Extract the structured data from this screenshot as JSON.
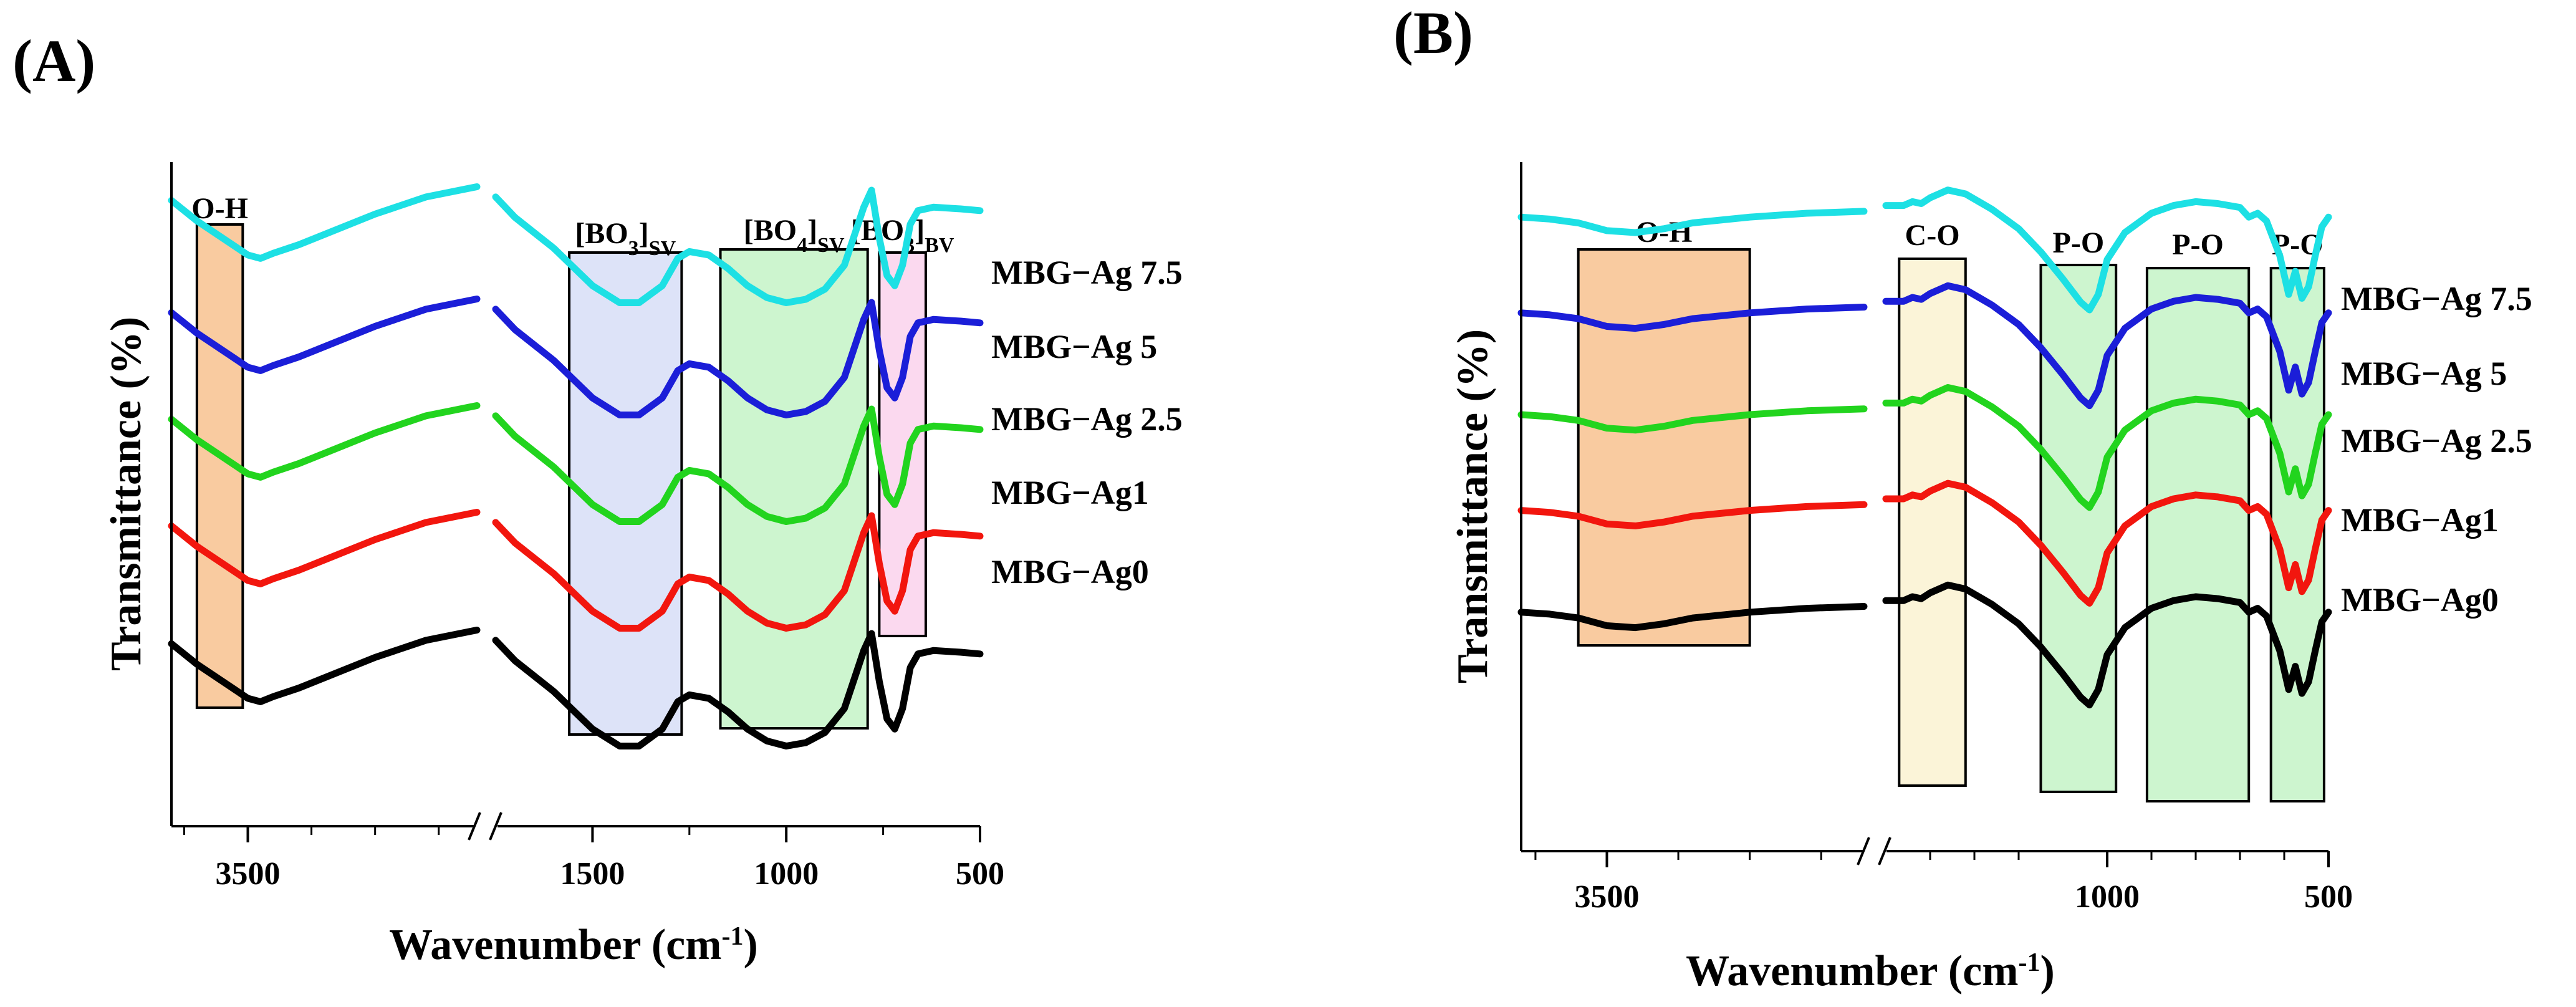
{
  "chart_data": [
    {
      "panel": "(A)",
      "type": "line",
      "xlabel": "Wavenumber (cm-1)",
      "ylabel": "Transmittance (%)",
      "x_reversed": true,
      "axis_break": "//",
      "x_segments": [
        {
          "range": [
            3800,
            2600
          ],
          "ticks": [
            3500
          ],
          "minor_ticks": [
            3750,
            3250,
            3000,
            2750
          ]
        },
        {
          "range": [
            1750,
            500
          ],
          "ticks": [
            1500,
            1000,
            500
          ],
          "minor_ticks": [
            1250,
            750
          ]
        }
      ],
      "tick_labels": [
        "3500",
        "1500",
        "1000",
        "500"
      ],
      "y_ticks_shown": false,
      "regions": [
        {
          "label": "O-H",
          "label_main": "O-H",
          "label_sub": "",
          "from": 3700,
          "to": 3520,
          "color": "#f9cba0"
        },
        {
          "label": "[BO3]SV",
          "label_main": "[BO",
          "label_num": "3",
          "label_sub": "SV",
          "from": 1560,
          "to": 1270,
          "color": "#dde3f8"
        },
        {
          "label": "[BO4]SV",
          "label_main": "[BO",
          "label_num": "4",
          "label_sub": "SV",
          "from": 1170,
          "to": 790,
          "color": "#cdf5cf"
        },
        {
          "label": "[BO3]BV",
          "label_main": "[BO",
          "label_num": "3",
          "label_sub": "BV",
          "from": 760,
          "to": 640,
          "color": "#fbd9ef"
        }
      ],
      "series": [
        {
          "name": "MBG−Ag 7.5",
          "color": "#1de0e4"
        },
        {
          "name": "MBG−Ag 5",
          "color": "#1b1ed8"
        },
        {
          "name": "MBG−Ag 2.5",
          "color": "#22d41e"
        },
        {
          "name": "MBG−Ag1",
          "color": "#f2160e"
        },
        {
          "name": "MBG−Ag0",
          "color": "#000000"
        }
      ],
      "curves_note": "Spectra are stacked with vertical offsets; transmittance values are relative (no y scale printed).",
      "offsets": [
        0.91,
        0.71,
        0.52,
        0.33,
        0.12
      ],
      "points": {
        "high": [
          [
            3800,
            0.62
          ],
          [
            3700,
            0.5
          ],
          [
            3600,
            0.4
          ],
          [
            3500,
            0.3
          ],
          [
            3450,
            0.28
          ],
          [
            3400,
            0.31
          ],
          [
            3300,
            0.36
          ],
          [
            3200,
            0.42
          ],
          [
            3000,
            0.54
          ],
          [
            2800,
            0.64
          ],
          [
            2600,
            0.7
          ]
        ],
        "low": [
          [
            1750,
            0.64
          ],
          [
            1700,
            0.52
          ],
          [
            1600,
            0.34
          ],
          [
            1500,
            0.12
          ],
          [
            1430,
            0.02
          ],
          [
            1380,
            0.02
          ],
          [
            1320,
            0.12
          ],
          [
            1280,
            0.28
          ],
          [
            1250,
            0.32
          ],
          [
            1200,
            0.3
          ],
          [
            1150,
            0.22
          ],
          [
            1100,
            0.12
          ],
          [
            1050,
            0.05
          ],
          [
            1000,
            0.02
          ],
          [
            950,
            0.04
          ],
          [
            900,
            0.1
          ],
          [
            850,
            0.24
          ],
          [
            800,
            0.58
          ],
          [
            780,
            0.68
          ],
          [
            760,
            0.4
          ],
          [
            740,
            0.18
          ],
          [
            720,
            0.12
          ],
          [
            700,
            0.24
          ],
          [
            680,
            0.48
          ],
          [
            660,
            0.56
          ],
          [
            620,
            0.58
          ],
          [
            550,
            0.57
          ],
          [
            500,
            0.56
          ]
        ]
      }
    },
    {
      "panel": "(B)",
      "type": "line",
      "xlabel": "Wavenumber (cm-1)",
      "ylabel": "Transmittance (%)",
      "x_reversed": true,
      "axis_break": "//",
      "x_segments": [
        {
          "range": [
            3800,
            2600
          ],
          "ticks": [
            3500
          ],
          "minor_ticks": [
            3750,
            3250,
            3000,
            2750
          ]
        },
        {
          "range": [
            1500,
            500
          ],
          "ticks": [
            1000,
            500
          ],
          "minor_ticks": [
            1400,
            1300,
            1200,
            900,
            800,
            700,
            600
          ]
        }
      ],
      "tick_labels": [
        "3500",
        "1000",
        "500"
      ],
      "y_ticks_shown": false,
      "regions": [
        {
          "label": "O-H",
          "label_main": "O-H",
          "from": 3600,
          "to": 3000,
          "color": "#f9cba0"
        },
        {
          "label": "C-O",
          "label_main": "C-O",
          "from": 1470,
          "to": 1320,
          "color": "#fbf4d8"
        },
        {
          "label": "P-O",
          "label_main": "P-O",
          "from": 1150,
          "to": 980,
          "color": "#cdf5cf"
        },
        {
          "label": "P-O",
          "label_main": "P-O",
          "from": 910,
          "to": 680,
          "color": "#cdf5cf"
        },
        {
          "label": "P-O",
          "label_main": "P-O",
          "from": 630,
          "to": 510,
          "color": "#cdf5cf"
        }
      ],
      "series": [
        {
          "name": "MBG−Ag 7.5",
          "color": "#1de0e4"
        },
        {
          "name": "MBG−Ag 5",
          "color": "#1b1ed8"
        },
        {
          "name": "MBG−Ag 2.5",
          "color": "#22d41e"
        },
        {
          "name": "MBG−Ag1",
          "color": "#f2160e"
        },
        {
          "name": "MBG−Ag0",
          "color": "#000000"
        }
      ],
      "curves_note": "Spectra are stacked with vertical offsets; transmittance values are relative (no y scale printed).",
      "offsets": [
        0.93,
        0.77,
        0.6,
        0.44,
        0.27
      ],
      "points": {
        "high": [
          [
            3800,
            0.5
          ],
          [
            3700,
            0.49
          ],
          [
            3600,
            0.47
          ],
          [
            3500,
            0.43
          ],
          [
            3400,
            0.42
          ],
          [
            3300,
            0.44
          ],
          [
            3200,
            0.47
          ],
          [
            3000,
            0.5
          ],
          [
            2800,
            0.52
          ],
          [
            2600,
            0.53
          ]
        ],
        "low": [
          [
            1500,
            0.56
          ],
          [
            1460,
            0.56
          ],
          [
            1440,
            0.58
          ],
          [
            1420,
            0.57
          ],
          [
            1400,
            0.6
          ],
          [
            1360,
            0.64
          ],
          [
            1320,
            0.62
          ],
          [
            1260,
            0.54
          ],
          [
            1200,
            0.44
          ],
          [
            1150,
            0.32
          ],
          [
            1100,
            0.18
          ],
          [
            1060,
            0.06
          ],
          [
            1040,
            0.02
          ],
          [
            1020,
            0.1
          ],
          [
            1000,
            0.28
          ],
          [
            960,
            0.42
          ],
          [
            900,
            0.52
          ],
          [
            850,
            0.56
          ],
          [
            800,
            0.58
          ],
          [
            750,
            0.57
          ],
          [
            700,
            0.55
          ],
          [
            680,
            0.5
          ],
          [
            660,
            0.52
          ],
          [
            640,
            0.48
          ],
          [
            610,
            0.3
          ],
          [
            590,
            0.1
          ],
          [
            575,
            0.22
          ],
          [
            560,
            0.08
          ],
          [
            545,
            0.14
          ],
          [
            530,
            0.3
          ],
          [
            515,
            0.45
          ],
          [
            500,
            0.5
          ]
        ]
      }
    }
  ]
}
